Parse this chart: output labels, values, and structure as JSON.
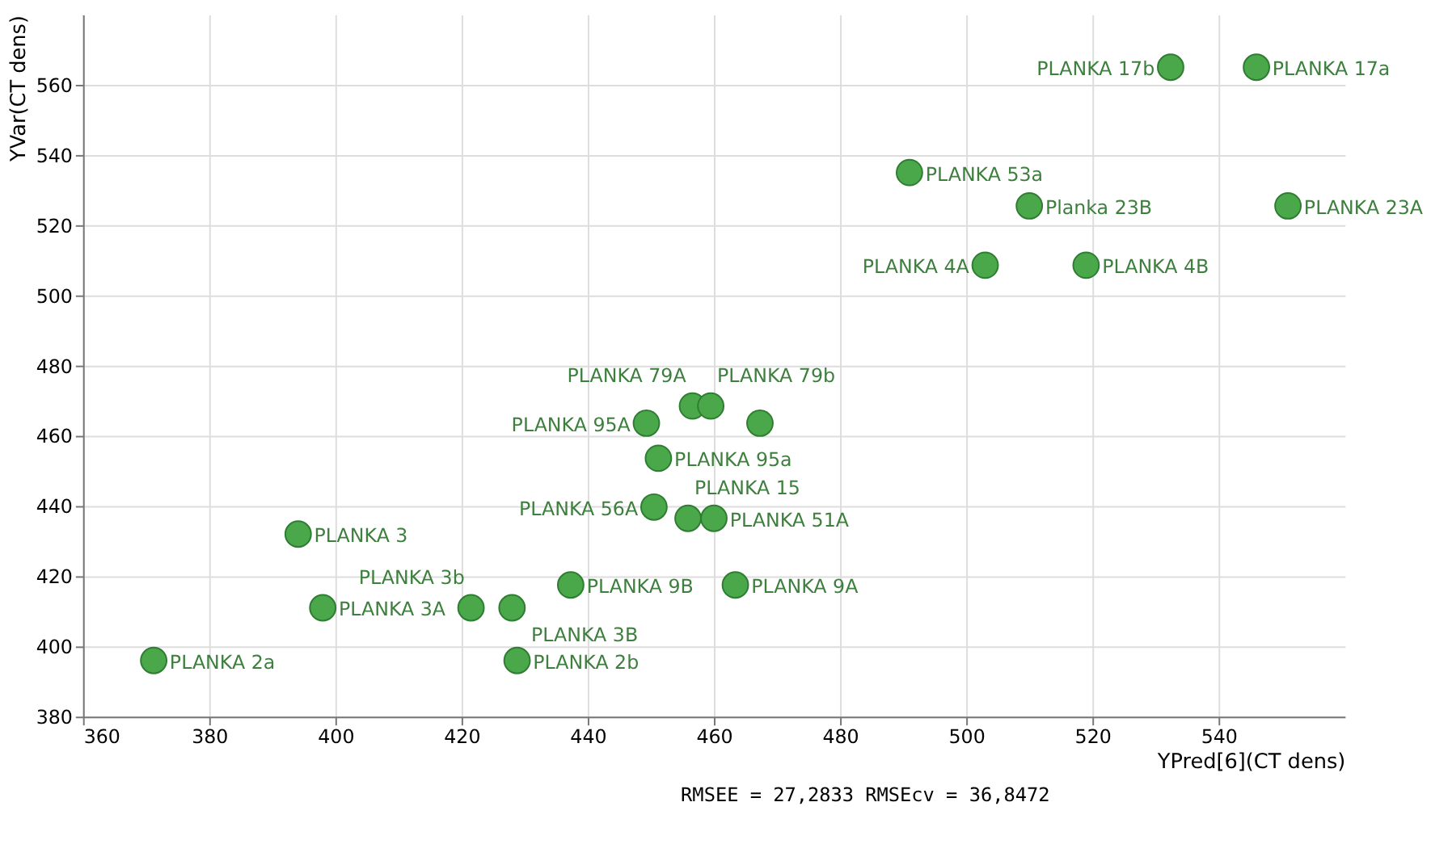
{
  "chart_data": {
    "type": "scatter",
    "xlabel": "YPred[6](CT dens)",
    "ylabel": "YVar(CT dens)",
    "x": [
      371.2,
      394.1,
      398,
      421.5,
      428,
      428.8,
      437.3,
      463.4,
      450.5,
      455.9,
      460,
      451.2,
      449.3,
      456.6,
      459.5,
      467.3,
      503,
      519,
      491,
      510,
      551,
      532.4,
      546
    ],
    "series": [
      {
        "color": "#4aa84a",
        "values": [
          396,
          432,
          411,
          411,
          411,
          396,
          417.5,
          417.5,
          439.7,
          436.5,
          436.5,
          453.6,
          463.6,
          468.5,
          468.5,
          463.6,
          508.6,
          508.6,
          535,
          525.5,
          525.5,
          565,
          565
        ],
        "value_labels": [
          "PLANKA 2a",
          "PLANKA   3",
          "PLANKA 3A",
          "PLANKA 3b",
          "PLANKA 3B",
          "PLANKA 2b",
          "PLANKA 9B",
          "PLANKA 9A",
          "PLANKA 56A",
          "PLANKA 15",
          "PLANKA 51A",
          "PLANKA 95a",
          "PLANKA 95A",
          "PLANKA 79A",
          "PLANKA 79b",
          null,
          "PLANKA 4A",
          "PLANKA 4B",
          "PLANKA 53a",
          "Planka 23B",
          "PLANKA 23A",
          "PLANKA 17b",
          "PLANKA 17a"
        ]
      }
    ],
    "xlim": [
      360,
      560
    ],
    "ylim": [
      380,
      580
    ],
    "xticks": [
      360,
      380,
      400,
      420,
      440,
      460,
      480,
      500,
      520,
      540
    ],
    "yticks": [
      380,
      400,
      420,
      440,
      460,
      480,
      500,
      520,
      540,
      560
    ],
    "grid": true,
    "marker": "circle",
    "annotations": [
      "RMSEE = 27,2833  RMSEcv = 36,8472"
    ]
  }
}
